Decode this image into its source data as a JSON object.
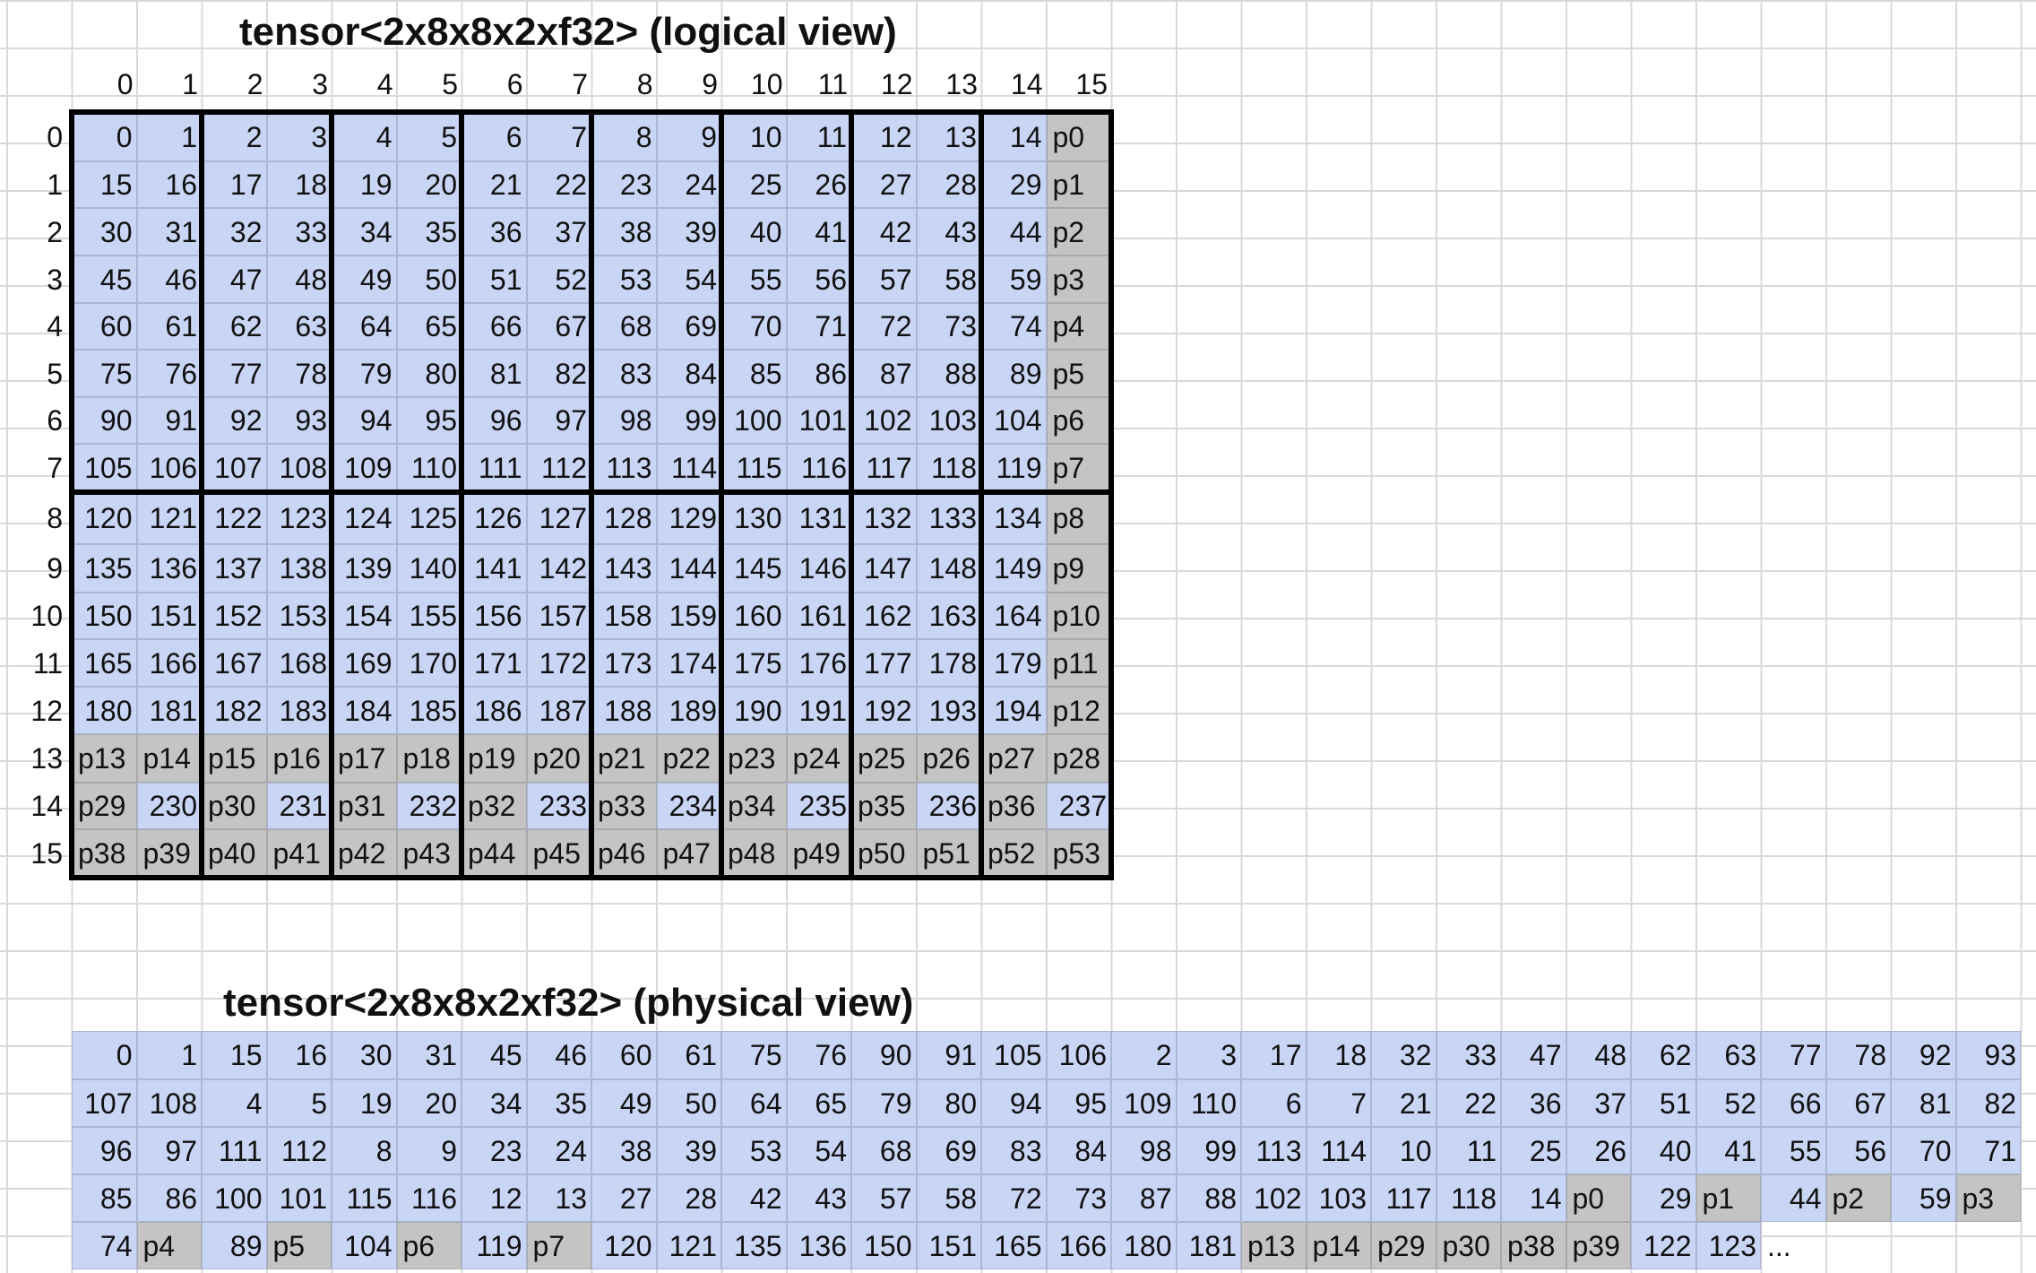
{
  "logical": {
    "title": "tensor<2x8x8x2xf32> (logical view)",
    "col_headers": [
      "0",
      "1",
      "2",
      "3",
      "4",
      "5",
      "6",
      "7",
      "8",
      "9",
      "10",
      "11",
      "12",
      "13",
      "14",
      "15"
    ],
    "row_headers": [
      "0",
      "1",
      "2",
      "3",
      "4",
      "5",
      "6",
      "7",
      "8",
      "9",
      "10",
      "11",
      "12",
      "13",
      "14",
      "15"
    ],
    "rows": [
      [
        "0",
        "1",
        "2",
        "3",
        "4",
        "5",
        "6",
        "7",
        "8",
        "9",
        "10",
        "11",
        "12",
        "13",
        "14",
        "p0"
      ],
      [
        "15",
        "16",
        "17",
        "18",
        "19",
        "20",
        "21",
        "22",
        "23",
        "24",
        "25",
        "26",
        "27",
        "28",
        "29",
        "p1"
      ],
      [
        "30",
        "31",
        "32",
        "33",
        "34",
        "35",
        "36",
        "37",
        "38",
        "39",
        "40",
        "41",
        "42",
        "43",
        "44",
        "p2"
      ],
      [
        "45",
        "46",
        "47",
        "48",
        "49",
        "50",
        "51",
        "52",
        "53",
        "54",
        "55",
        "56",
        "57",
        "58",
        "59",
        "p3"
      ],
      [
        "60",
        "61",
        "62",
        "63",
        "64",
        "65",
        "66",
        "67",
        "68",
        "69",
        "70",
        "71",
        "72",
        "73",
        "74",
        "p4"
      ],
      [
        "75",
        "76",
        "77",
        "78",
        "79",
        "80",
        "81",
        "82",
        "83",
        "84",
        "85",
        "86",
        "87",
        "88",
        "89",
        "p5"
      ],
      [
        "90",
        "91",
        "92",
        "93",
        "94",
        "95",
        "96",
        "97",
        "98",
        "99",
        "100",
        "101",
        "102",
        "103",
        "104",
        "p6"
      ],
      [
        "105",
        "106",
        "107",
        "108",
        "109",
        "110",
        "111",
        "112",
        "113",
        "114",
        "115",
        "116",
        "117",
        "118",
        "119",
        "p7"
      ],
      [
        "120",
        "121",
        "122",
        "123",
        "124",
        "125",
        "126",
        "127",
        "128",
        "129",
        "130",
        "131",
        "132",
        "133",
        "134",
        "p8"
      ],
      [
        "135",
        "136",
        "137",
        "138",
        "139",
        "140",
        "141",
        "142",
        "143",
        "144",
        "145",
        "146",
        "147",
        "148",
        "149",
        "p9"
      ],
      [
        "150",
        "151",
        "152",
        "153",
        "154",
        "155",
        "156",
        "157",
        "158",
        "159",
        "160",
        "161",
        "162",
        "163",
        "164",
        "p10"
      ],
      [
        "165",
        "166",
        "167",
        "168",
        "169",
        "170",
        "171",
        "172",
        "173",
        "174",
        "175",
        "176",
        "177",
        "178",
        "179",
        "p11"
      ],
      [
        "180",
        "181",
        "182",
        "183",
        "184",
        "185",
        "186",
        "187",
        "188",
        "189",
        "190",
        "191",
        "192",
        "193",
        "194",
        "p12"
      ],
      [
        "p13",
        "p14",
        "p15",
        "p16",
        "p17",
        "p18",
        "p19",
        "p20",
        "p21",
        "p22",
        "p23",
        "p24",
        "p25",
        "p26",
        "p27",
        "p28"
      ],
      [
        "p29",
        "230",
        "p30",
        "231",
        "p31",
        "232",
        "p32",
        "233",
        "p33",
        "234",
        "p34",
        "235",
        "p35",
        "236",
        "p36",
        "237"
      ],
      [
        "p38",
        "p39",
        "p40",
        "p41",
        "p42",
        "p43",
        "p44",
        "p45",
        "p46",
        "p47",
        "p48",
        "p49",
        "p50",
        "p51",
        "p52",
        "p53"
      ]
    ]
  },
  "physical": {
    "title": "tensor<2x8x8x2xf32> (physical view)",
    "rows": [
      [
        "0",
        "1",
        "15",
        "16",
        "30",
        "31",
        "45",
        "46",
        "60",
        "61",
        "75",
        "76",
        "90",
        "91",
        "105",
        "106",
        "2",
        "3",
        "17",
        "18",
        "32",
        "33",
        "47",
        "48",
        "62",
        "63",
        "77",
        "78",
        "92",
        "93"
      ],
      [
        "107",
        "108",
        "4",
        "5",
        "19",
        "20",
        "34",
        "35",
        "49",
        "50",
        "64",
        "65",
        "79",
        "80",
        "94",
        "95",
        "109",
        "110",
        "6",
        "7",
        "21",
        "22",
        "36",
        "37",
        "51",
        "52",
        "66",
        "67",
        "81",
        "82"
      ],
      [
        "96",
        "97",
        "111",
        "112",
        "8",
        "9",
        "23",
        "24",
        "38",
        "39",
        "53",
        "54",
        "68",
        "69",
        "83",
        "84",
        "98",
        "99",
        "113",
        "114",
        "10",
        "11",
        "25",
        "26",
        "40",
        "41",
        "55",
        "56",
        "70",
        "71"
      ],
      [
        "85",
        "86",
        "100",
        "101",
        "115",
        "116",
        "12",
        "13",
        "27",
        "28",
        "42",
        "43",
        "57",
        "58",
        "72",
        "73",
        "87",
        "88",
        "102",
        "103",
        "117",
        "118",
        "14",
        "p0",
        "29",
        "p1",
        "44",
        "p2",
        "59",
        "p3"
      ],
      [
        "74",
        "p4",
        "89",
        "p5",
        "104",
        "p6",
        "119",
        "p7",
        "120",
        "121",
        "135",
        "136",
        "150",
        "151",
        "165",
        "166",
        "180",
        "181",
        "p13",
        "p14",
        "p29",
        "p30",
        "p38",
        "p39",
        "122",
        "123",
        "...",
        "",
        "",
        ""
      ]
    ]
  },
  "colors": {
    "value_cell": "#c9d5f5",
    "padding_cell": "#c4c4c4",
    "gridline": "#d9d9d9",
    "tile_border": "#000000"
  }
}
